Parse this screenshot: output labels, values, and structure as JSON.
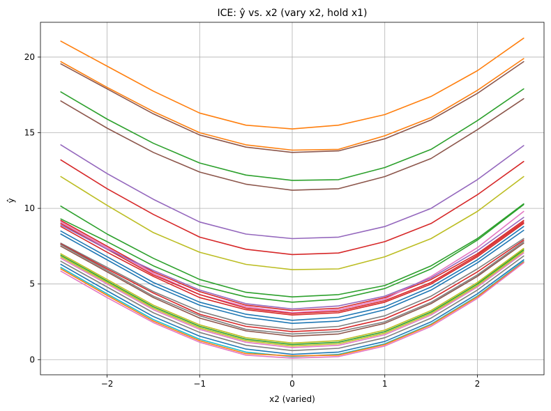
{
  "chart_data": {
    "type": "line",
    "title": "ICE: ŷ vs. x2 (vary x2, hold x1)",
    "xlabel": "x2 (varied)",
    "ylabel": "ŷ",
    "xlim": [
      -2.72,
      2.72
    ],
    "ylim": [
      -1.0,
      22.3
    ],
    "xticks": [
      -2,
      -1,
      0,
      1,
      2
    ],
    "xtick_labels": [
      "−2",
      "−1",
      "0",
      "1",
      "2"
    ],
    "yticks": [
      0,
      5,
      10,
      15,
      20
    ],
    "ytick_labels": [
      "0",
      "5",
      "10",
      "15",
      "20"
    ],
    "grid": true,
    "legend": "none",
    "x": [
      -2.5,
      -2.0,
      -1.5,
      -1.0,
      -0.5,
      0.0,
      0.5,
      1.0,
      1.5,
      2.0,
      2.5
    ],
    "colors": [
      "#1f77b4",
      "#ff7f0e",
      "#2ca02c",
      "#d62728",
      "#9467bd",
      "#8c564b",
      "#e377c2",
      "#7f7f7f",
      "#bcbd22",
      "#17becf"
    ],
    "series": [
      {
        "color": "#ff7f0e",
        "values": [
          21.05,
          19.4,
          17.75,
          16.3,
          15.5,
          15.25,
          15.5,
          16.2,
          17.4,
          19.1,
          21.25
        ]
      },
      {
        "color": "#ff7f0e",
        "values": [
          19.7,
          18.0,
          16.4,
          15.0,
          14.2,
          13.85,
          13.9,
          14.8,
          16.0,
          17.8,
          19.9
        ]
      },
      {
        "color": "#8c564b",
        "values": [
          19.55,
          17.9,
          16.25,
          14.85,
          14.05,
          13.7,
          13.8,
          14.6,
          15.85,
          17.6,
          19.7
        ]
      },
      {
        "color": "#2ca02c",
        "values": [
          17.7,
          15.9,
          14.3,
          13.0,
          12.2,
          11.85,
          11.9,
          12.7,
          13.9,
          15.8,
          17.9
        ]
      },
      {
        "color": "#8c564b",
        "values": [
          17.1,
          15.3,
          13.7,
          12.4,
          11.6,
          11.2,
          11.3,
          12.1,
          13.3,
          15.2,
          17.25
        ]
      },
      {
        "color": "#9467bd",
        "values": [
          14.2,
          12.3,
          10.6,
          9.1,
          8.3,
          8.0,
          8.1,
          8.8,
          10.0,
          11.9,
          14.15
        ]
      },
      {
        "color": "#d62728",
        "values": [
          13.2,
          11.3,
          9.6,
          8.1,
          7.3,
          6.95,
          7.05,
          7.8,
          9.0,
          10.9,
          13.1
        ]
      },
      {
        "color": "#bcbd22",
        "values": [
          12.1,
          10.2,
          8.4,
          7.1,
          6.3,
          5.95,
          6.0,
          6.8,
          8.0,
          9.8,
          12.1
        ]
      },
      {
        "color": "#2ca02c",
        "values": [
          10.15,
          8.3,
          6.7,
          5.3,
          4.45,
          4.15,
          4.3,
          4.9,
          6.2,
          8.0,
          10.3
        ]
      },
      {
        "color": "#2ca02c",
        "values": [
          9.3,
          7.8,
          6.2,
          4.9,
          4.15,
          3.8,
          4.0,
          4.7,
          6.0,
          7.9,
          10.25
        ]
      },
      {
        "color": "#d62728",
        "values": [
          9.2,
          7.5,
          5.8,
          4.5,
          3.6,
          3.25,
          3.4,
          4.1,
          5.3,
          7.0,
          9.2
        ]
      },
      {
        "color": "#e377c2",
        "values": [
          9.1,
          7.4,
          5.7,
          4.3,
          3.5,
          3.1,
          3.3,
          4.0,
          5.5,
          7.4,
          9.8
        ]
      },
      {
        "color": "#d62728",
        "values": [
          9.0,
          7.3,
          5.6,
          4.3,
          3.4,
          3.05,
          3.2,
          3.9,
          5.1,
          6.9,
          9.1
        ]
      },
      {
        "color": "#9467bd",
        "values": [
          8.9,
          7.3,
          5.9,
          4.6,
          3.7,
          3.35,
          3.55,
          4.2,
          5.4,
          7.2,
          9.4
        ]
      },
      {
        "color": "#d62728",
        "values": [
          8.8,
          7.1,
          5.5,
          4.1,
          3.3,
          2.95,
          3.1,
          3.8,
          5.0,
          6.8,
          9.0
        ]
      },
      {
        "color": "#1f77b4",
        "values": [
          8.5,
          6.8,
          5.1,
          3.8,
          3.0,
          2.6,
          2.8,
          3.5,
          4.8,
          6.6,
          8.8
        ]
      },
      {
        "color": "#1f77b4",
        "values": [
          8.3,
          6.6,
          4.9,
          3.6,
          2.8,
          2.4,
          2.55,
          3.3,
          4.6,
          6.4,
          8.55
        ]
      },
      {
        "color": "#7f7f7f",
        "values": [
          7.7,
          6.1,
          4.5,
          3.2,
          2.35,
          2.0,
          2.2,
          2.9,
          4.2,
          6.0,
          8.0
        ]
      },
      {
        "color": "#d62728",
        "values": [
          7.65,
          6.0,
          4.4,
          3.0,
          2.2,
          1.85,
          2.0,
          2.7,
          4.0,
          5.8,
          7.9
        ]
      },
      {
        "color": "#7f7f7f",
        "values": [
          7.6,
          5.9,
          4.2,
          2.9,
          2.0,
          1.7,
          1.85,
          2.5,
          3.8,
          5.6,
          7.8
        ]
      },
      {
        "color": "#8c564b",
        "values": [
          7.5,
          5.8,
          4.1,
          2.75,
          1.9,
          1.55,
          1.7,
          2.4,
          3.7,
          5.5,
          7.7
        ]
      },
      {
        "color": "#bcbd22",
        "values": [
          7.0,
          5.3,
          3.6,
          2.3,
          1.45,
          1.1,
          1.25,
          1.95,
          3.25,
          5.1,
          7.35
        ]
      },
      {
        "color": "#2ca02c",
        "values": [
          6.9,
          5.2,
          3.5,
          2.2,
          1.35,
          1.0,
          1.15,
          1.85,
          3.15,
          5.0,
          7.25
        ]
      },
      {
        "color": "#bcbd22",
        "values": [
          6.8,
          5.1,
          3.4,
          2.1,
          1.25,
          0.9,
          1.05,
          1.75,
          3.05,
          4.9,
          7.15
        ]
      },
      {
        "color": "#e377c2",
        "values": [
          6.7,
          5.0,
          3.3,
          2.0,
          1.15,
          0.8,
          0.95,
          1.65,
          2.95,
          4.8,
          7.05
        ]
      },
      {
        "color": "#7f7f7f",
        "values": [
          6.5,
          4.8,
          3.1,
          1.8,
          0.95,
          0.6,
          0.75,
          1.45,
          2.75,
          4.6,
          6.85
        ]
      },
      {
        "color": "#1f77b4",
        "values": [
          6.3,
          4.55,
          2.85,
          1.55,
          0.7,
          0.35,
          0.5,
          1.2,
          2.5,
          4.35,
          6.6
        ]
      },
      {
        "color": "#17becf",
        "values": [
          6.1,
          4.35,
          2.65,
          1.35,
          0.5,
          0.2,
          0.35,
          1.05,
          2.35,
          4.2,
          6.5
        ]
      },
      {
        "color": "#ff7f0e",
        "values": [
          6.0,
          4.25,
          2.55,
          1.25,
          0.4,
          0.25,
          0.3,
          1.0,
          2.3,
          4.15,
          6.45
        ]
      },
      {
        "color": "#e377c2",
        "values": [
          5.85,
          4.1,
          2.45,
          1.15,
          0.3,
          0.1,
          0.2,
          0.9,
          2.2,
          4.05,
          6.4
        ]
      }
    ]
  }
}
